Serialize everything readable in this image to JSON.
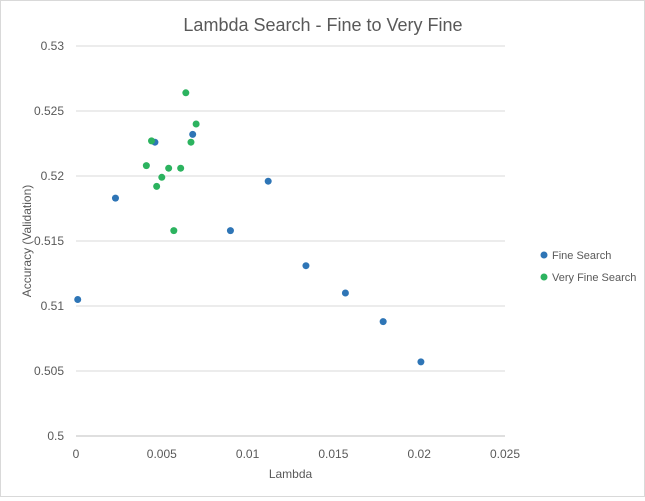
{
  "chart_data": {
    "type": "scatter",
    "title": "Lambda Search - Fine to Very Fine",
    "xlabel": "Lambda",
    "ylabel": "Accuracy (Validation)",
    "xlim": [
      0,
      0.025
    ],
    "ylim": [
      0.5,
      0.53
    ],
    "x_ticks": [
      "0",
      "0.005",
      "0.01",
      "0.015",
      "0.02",
      "0.025"
    ],
    "x_tick_values": [
      0,
      0.005,
      0.01,
      0.015,
      0.02,
      0.025
    ],
    "y_ticks": [
      "0.5",
      "0.505",
      "0.51",
      "0.515",
      "0.52",
      "0.525",
      "0.53"
    ],
    "y_tick_values": [
      0.5,
      0.505,
      0.51,
      0.515,
      0.52,
      0.525,
      0.53
    ],
    "grid": "horizontal",
    "legend_position": "right",
    "series": [
      {
        "name": "Fine Search",
        "color": "#2e75b6",
        "points": [
          {
            "x": 0.0001,
            "y": 0.5105
          },
          {
            "x": 0.0023,
            "y": 0.5183
          },
          {
            "x": 0.0046,
            "y": 0.5226
          },
          {
            "x": 0.0068,
            "y": 0.5232
          },
          {
            "x": 0.009,
            "y": 0.5158
          },
          {
            "x": 0.0112,
            "y": 0.5196
          },
          {
            "x": 0.0134,
            "y": 0.5131
          },
          {
            "x": 0.0157,
            "y": 0.511
          },
          {
            "x": 0.0179,
            "y": 0.5088
          },
          {
            "x": 0.0201,
            "y": 0.5057
          }
        ]
      },
      {
        "name": "Very Fine Search",
        "color": "#2cb35f",
        "points": [
          {
            "x": 0.0041,
            "y": 0.5208
          },
          {
            "x": 0.0044,
            "y": 0.5227
          },
          {
            "x": 0.0047,
            "y": 0.5192
          },
          {
            "x": 0.005,
            "y": 0.5199
          },
          {
            "x": 0.0054,
            "y": 0.5206
          },
          {
            "x": 0.0057,
            "y": 0.5158
          },
          {
            "x": 0.0061,
            "y": 0.5206
          },
          {
            "x": 0.0064,
            "y": 0.5264
          },
          {
            "x": 0.0067,
            "y": 0.5226
          },
          {
            "x": 0.007,
            "y": 0.524
          }
        ]
      }
    ]
  }
}
